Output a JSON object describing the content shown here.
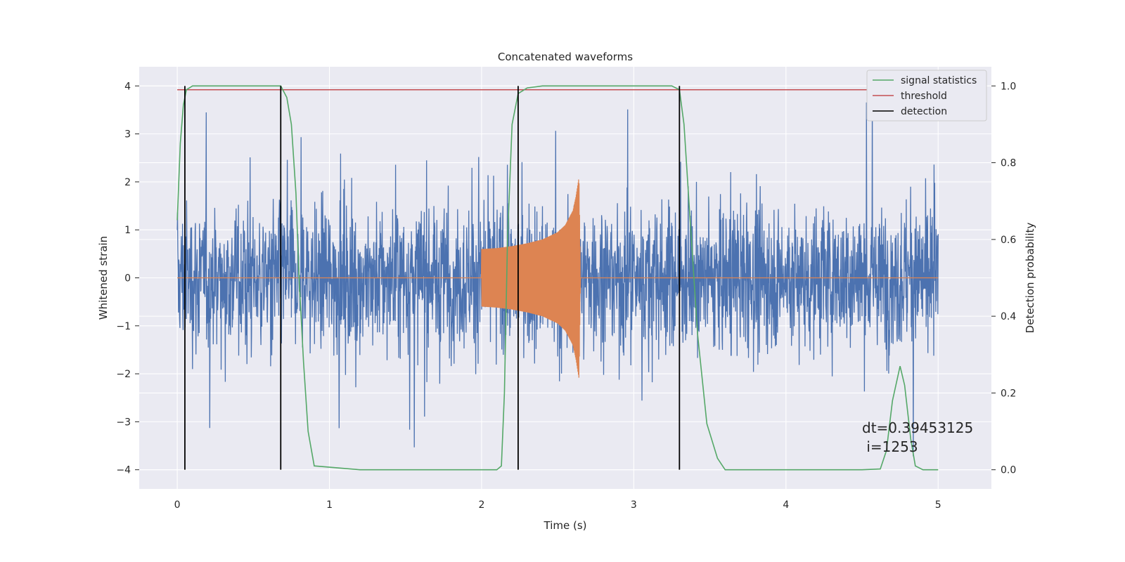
{
  "chart_data": {
    "type": "line",
    "title": "Concatenated waveforms",
    "xlabel": "Time (s)",
    "ylabel": "Whitened strain",
    "y2label": "Detection probability",
    "xlim": [
      -0.25,
      5.35
    ],
    "ylim": [
      -4.4,
      4.4
    ],
    "y2lim": [
      -0.05,
      1.05
    ],
    "x_ticks": [
      0,
      1,
      2,
      3,
      4,
      5
    ],
    "y_ticks": [
      -4,
      -3,
      -2,
      -1,
      0,
      1,
      2,
      3,
      4
    ],
    "y2_ticks": [
      0.0,
      0.2,
      0.4,
      0.6,
      0.8,
      1.0
    ],
    "x_tick_labels": [
      "0",
      "1",
      "2",
      "3",
      "4",
      "5"
    ],
    "y_tick_labels": [
      "−4",
      "−3",
      "−2",
      "−1",
      "0",
      "1",
      "2",
      "3",
      "4"
    ],
    "y2_tick_labels": [
      "0.0",
      "0.2",
      "0.4",
      "0.6",
      "0.8",
      "1.0"
    ],
    "grid": true,
    "legend_position": "top-right",
    "legend": [
      {
        "name": "signal statistics",
        "color": "#55a868"
      },
      {
        "name": "threshold",
        "color": "#c44e52"
      },
      {
        "name": "detection",
        "color": "#000000"
      }
    ],
    "colors": {
      "strain": "#4c72b0",
      "injection": "#dd8452",
      "signal_statistics": "#55a868",
      "threshold": "#c44e52",
      "detection": "#000000",
      "background": "#eaeaf2"
    },
    "strain": {
      "x_range": [
        0,
        5
      ],
      "typical_amplitude": 2.0,
      "max_peak": 4.0,
      "min_peak": -4.0
    },
    "injection": {
      "x": [
        2.0,
        2.1,
        2.2,
        2.3,
        2.4,
        2.5,
        2.55,
        2.6,
        2.62,
        2.64,
        2.65
      ],
      "amplitude": [
        0.6,
        0.62,
        0.66,
        0.72,
        0.8,
        0.95,
        1.1,
        1.4,
        1.7,
        2.1,
        0.0
      ]
    },
    "threshold_value": 0.99,
    "threshold_x": [
      0,
      5
    ],
    "detections": [
      0.05,
      0.68,
      2.24,
      3.3
    ],
    "signal_statistics": {
      "x": [
        0.0,
        0.02,
        0.04,
        0.06,
        0.1,
        0.2,
        0.4,
        0.6,
        0.68,
        0.72,
        0.75,
        0.78,
        0.8,
        0.83,
        0.86,
        0.9,
        1.2,
        1.6,
        2.0,
        2.1,
        2.13,
        2.15,
        2.17,
        2.2,
        2.24,
        2.3,
        2.4,
        2.6,
        3.0,
        3.25,
        3.3,
        3.33,
        3.37,
        3.42,
        3.48,
        3.55,
        3.6,
        4.0,
        4.5,
        4.62,
        4.66,
        4.7,
        4.75,
        4.78,
        4.82,
        4.85,
        4.9,
        5.0
      ],
      "y": [
        0.65,
        0.85,
        0.95,
        0.99,
        1.0,
        1.0,
        1.0,
        1.0,
        1.0,
        0.97,
        0.9,
        0.72,
        0.5,
        0.28,
        0.1,
        0.01,
        0.0,
        0.0,
        0.0,
        0.0,
        0.01,
        0.2,
        0.6,
        0.9,
        0.98,
        0.995,
        1.0,
        1.0,
        1.0,
        1.0,
        0.99,
        0.9,
        0.65,
        0.35,
        0.12,
        0.03,
        0.0,
        0.0,
        0.0,
        0.002,
        0.05,
        0.18,
        0.27,
        0.22,
        0.08,
        0.01,
        0.0,
        0.0
      ]
    },
    "annotation": {
      "line1": "dt=0.39453125",
      "line2": " i=1253"
    }
  }
}
